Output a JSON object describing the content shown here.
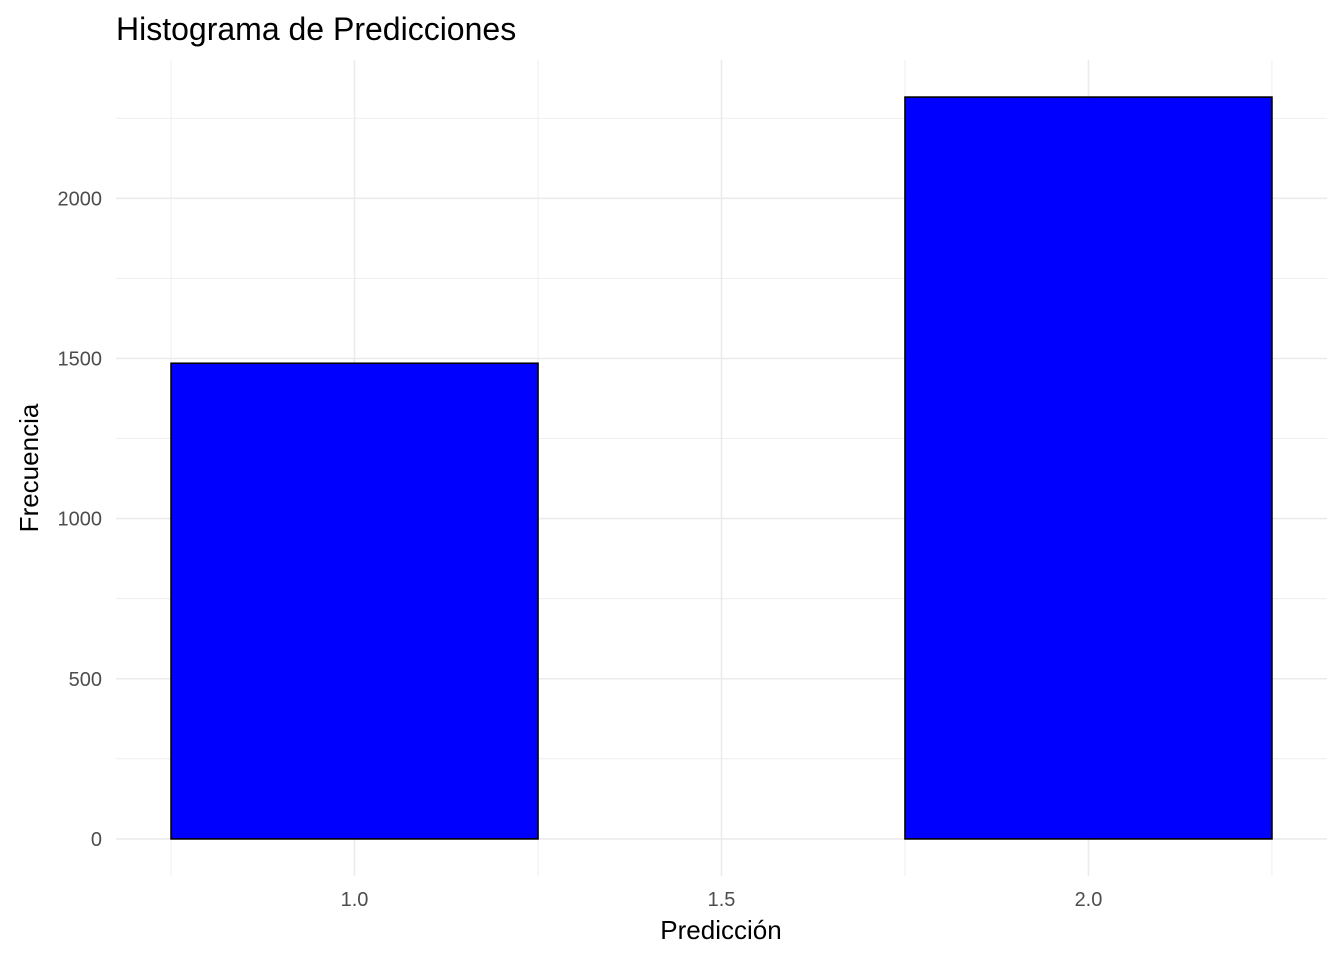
{
  "chart_data": {
    "type": "bar",
    "subtype": "histogram",
    "title": "Histograma de Predicciones",
    "xlabel": "Predicción",
    "ylabel": "Frecuencia",
    "bins": [
      {
        "x_start": 0.75,
        "x_end": 1.25,
        "count": 1485
      },
      {
        "x_start": 1.25,
        "x_end": 1.75,
        "count": 0
      },
      {
        "x_start": 1.75,
        "x_end": 2.25,
        "count": 2316
      }
    ],
    "xlim": [
      0.675,
      2.325
    ],
    "ylim": [
      -115.8,
      2431.8
    ],
    "x_ticks": [
      {
        "value": 1.0,
        "label": "1.0"
      },
      {
        "value": 1.5,
        "label": "1.5"
      },
      {
        "value": 2.0,
        "label": "2.0"
      }
    ],
    "y_ticks": [
      {
        "value": 0,
        "label": "0"
      },
      {
        "value": 500,
        "label": "500"
      },
      {
        "value": 1000,
        "label": "1000"
      },
      {
        "value": 1500,
        "label": "1500"
      },
      {
        "value": 2000,
        "label": "2000"
      }
    ],
    "grid": true,
    "legend": "none",
    "colors": {
      "fill": "#0000ff",
      "outline": "#000000",
      "grid": "#ebebeb",
      "background": "#ffffff"
    }
  }
}
